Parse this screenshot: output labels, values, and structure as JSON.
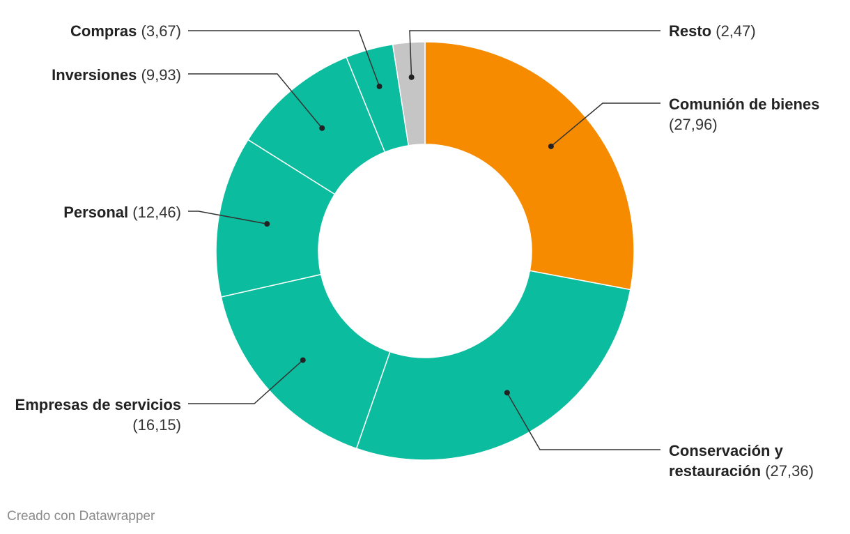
{
  "chart_data": {
    "type": "pie",
    "variant": "donut",
    "slices": [
      {
        "name": "Comunión de bienes",
        "value": 27.96,
        "value_label": "(27,96)",
        "color": "#f78b00"
      },
      {
        "name": "Conservación y restauración",
        "value": 27.36,
        "value_label": "(27,36)",
        "color": "#0bbc9f"
      },
      {
        "name": "Empresas de servicios",
        "value": 16.15,
        "value_label": "(16,15)",
        "color": "#0bbc9f"
      },
      {
        "name": "Personal",
        "value": 12.46,
        "value_label": "(12,46)",
        "color": "#0bbc9f"
      },
      {
        "name": "Inversiones",
        "value": 9.93,
        "value_label": "(9,93)",
        "color": "#0bbc9f"
      },
      {
        "name": "Compras",
        "value": 3.67,
        "value_label": "(3,67)",
        "color": "#0bbc9f"
      },
      {
        "name": "Resto",
        "value": 2.47,
        "value_label": "(2,47)",
        "color": "#c5c5c5"
      }
    ]
  },
  "labels": {
    "comunion_1": "Comunión de bienes",
    "conservacion_1": "Conservación y",
    "conservacion_2": "restauración",
    "empresas_1": "Empresas de servicios",
    "personal": "Personal",
    "inversiones": "Inversiones",
    "compras": "Compras",
    "resto": "Resto"
  },
  "footer": {
    "credit": "Creado con Datawrapper"
  }
}
